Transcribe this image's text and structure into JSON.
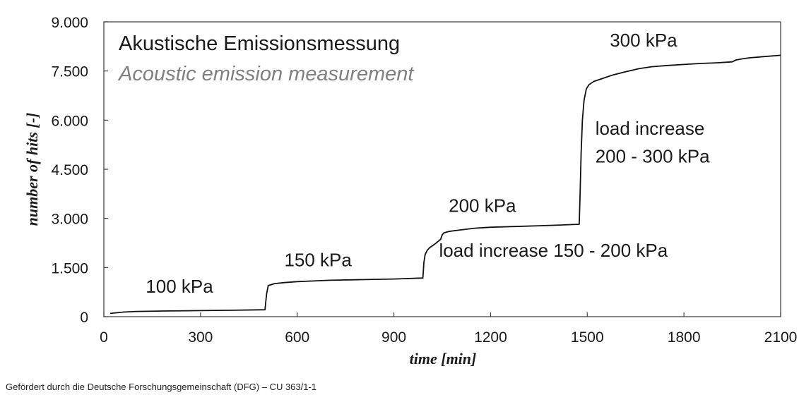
{
  "chart_data": {
    "type": "line",
    "title": "Akustische Emissionsmessung",
    "subtitle": "Acoustic emission measurement",
    "xlabel": "time [min]",
    "ylabel": "number of hits [-]",
    "xlim": [
      0,
      2100
    ],
    "ylim": [
      0,
      9000
    ],
    "xticks": [
      0,
      300,
      600,
      900,
      1200,
      1500,
      1800,
      2100
    ],
    "xtick_labels": [
      "0",
      "300",
      "600",
      "900",
      "1200",
      "1500",
      "1800",
      "2100"
    ],
    "yticks": [
      0,
      1500,
      3000,
      4500,
      6000,
      7500,
      9000
    ],
    "ytick_labels": [
      "0",
      "1.500",
      "3.000",
      "4.500",
      "6.000",
      "7.500",
      "9.000"
    ],
    "grid": false,
    "legend": "none",
    "line_color": "#111111",
    "series": [
      {
        "x": [
          20,
          60,
          100,
          200,
          300,
          400,
          500,
          505,
          510,
          530,
          560,
          600,
          650,
          700,
          800,
          900,
          990,
          993,
          997,
          1003,
          1010,
          1025,
          1035,
          1045,
          1050,
          1055,
          1070,
          1100,
          1150,
          1200,
          1300,
          1400,
          1475,
          1478,
          1481,
          1485,
          1490,
          1497,
          1505,
          1520,
          1550,
          1580,
          1620,
          1660,
          1700,
          1750,
          1800,
          1850,
          1900,
          1950,
          1960,
          1975,
          2000,
          2050,
          2100
        ],
        "y": [
          100,
          140,
          160,
          175,
          185,
          195,
          210,
          700,
          950,
          1010,
          1040,
          1070,
          1090,
          1110,
          1130,
          1150,
          1180,
          1650,
          1900,
          2020,
          2100,
          2200,
          2280,
          2360,
          2500,
          2560,
          2600,
          2640,
          2700,
          2730,
          2760,
          2790,
          2820,
          3800,
          5000,
          6000,
          6600,
          6950,
          7080,
          7180,
          7280,
          7380,
          7480,
          7570,
          7630,
          7670,
          7700,
          7730,
          7750,
          7780,
          7830,
          7860,
          7900,
          7940,
          7980
        ]
      }
    ],
    "annotations": [
      {
        "text": "100 kPa",
        "x": 130,
        "y": 730
      },
      {
        "text": "150 kPa",
        "x": 560,
        "y": 1540
      },
      {
        "text": "200 kPa",
        "x": 1070,
        "y": 3200
      },
      {
        "text": "300 kPa",
        "x": 1570,
        "y": 8250
      },
      {
        "text": "load increase 150 - 200 kPa",
        "x": 1040,
        "y": 1830
      },
      {
        "text": "load increase",
        "x": 1525,
        "y": 5550
      },
      {
        "text": "200 - 300 kPa",
        "x": 1525,
        "y": 4700
      }
    ]
  },
  "footer": "Gefördert durch die Deutsche Forschungsgemeinschaft (DFG) – CU 363/1-1"
}
